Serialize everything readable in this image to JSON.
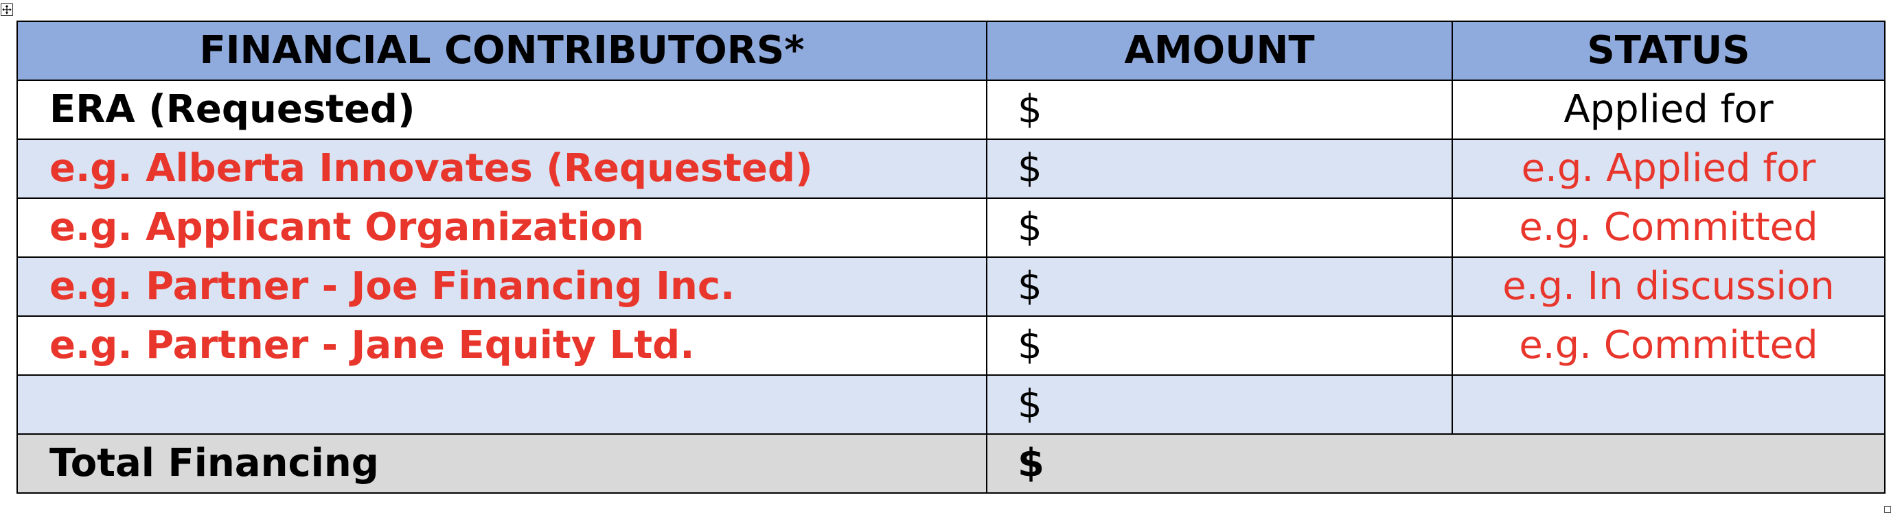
{
  "table": {
    "headers": {
      "contributors": "FINANCIAL CONTRIBUTORS*",
      "amount": "AMOUNT",
      "status": "STATUS"
    },
    "rows": [
      {
        "contributor": "ERA (Requested)",
        "amount": "$",
        "status": "Applied for",
        "style": "black",
        "shade": "white"
      },
      {
        "contributor": "e.g. Alberta Innovates (Requested)",
        "amount": "$",
        "status": "e.g. Applied for",
        "style": "red",
        "shade": "blue"
      },
      {
        "contributor": "e.g. Applicant Organization",
        "amount": "$",
        "status": "e.g. Committed",
        "style": "red",
        "shade": "white"
      },
      {
        "contributor": "e.g. Partner - Joe Financing Inc.",
        "amount": "$",
        "status": "e.g. In discussion",
        "style": "red",
        "shade": "blue"
      },
      {
        "contributor": "e.g. Partner - Jane Equity Ltd.",
        "amount": "$",
        "status": "e.g. Committed",
        "style": "red",
        "shade": "white"
      },
      {
        "contributor": "",
        "amount": "$",
        "status": "",
        "style": "black",
        "shade": "blue"
      }
    ],
    "total": {
      "label": "Total Financing",
      "amount": "$"
    }
  },
  "colors": {
    "header_bg": "#8faadc",
    "band_bg": "#dae3f3",
    "total_bg": "#d9d9d9",
    "example_text": "#e8362c"
  },
  "icons": {
    "move_handle": "table-move-handle-icon",
    "resize_handle": "table-resize-handle-icon"
  }
}
